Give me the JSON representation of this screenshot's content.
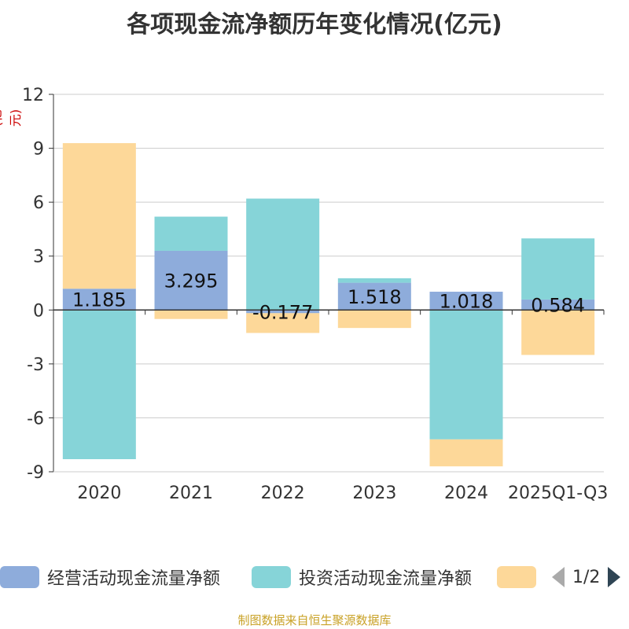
{
  "chart_data": {
    "type": "bar",
    "stacked": true,
    "title": "各项现金流净额历年变化情况(亿元)",
    "ylabel": "(亿元)",
    "xlabel": "",
    "categories": [
      "2020",
      "2021",
      "2022",
      "2023",
      "2024",
      "2025Q1-Q3"
    ],
    "ylim": [
      -9,
      12
    ],
    "yticks": [
      12,
      9,
      6,
      3,
      0,
      -3,
      -6,
      -9
    ],
    "series": [
      {
        "name": "经营活动现金流量净额",
        "color": "#8eacdb",
        "values": [
          1.185,
          3.295,
          -0.177,
          1.518,
          1.018,
          0.584
        ]
      },
      {
        "name": "投资活动现金流量净额",
        "color": "#86d4d8",
        "values": [
          -8.3,
          1.9,
          6.2,
          0.25,
          -7.2,
          3.4
        ]
      },
      {
        "name": "",
        "color": "#fdd899",
        "values": [
          8.1,
          -0.5,
          -1.1,
          -1.0,
          -1.5,
          -2.5
        ]
      }
    ],
    "data_labels": [
      "1.185",
      "3.295",
      "-0.177",
      "1.518",
      "1.018",
      "0.584"
    ],
    "grid": true,
    "legend_position": "bottom"
  },
  "legend": {
    "items": [
      "经营活动现金流量净额",
      "投资活动现金流量净额",
      ""
    ],
    "page": "1/2"
  },
  "source": "制图数据来自恒生聚源数据库",
  "colors": {
    "axis": "#333333",
    "grid": "#cccccc",
    "title": "#333333",
    "source": "#c9a227",
    "unit": "#cc0000",
    "pager_prev": "#aaaaaa",
    "pager_next": "#2f4554"
  }
}
